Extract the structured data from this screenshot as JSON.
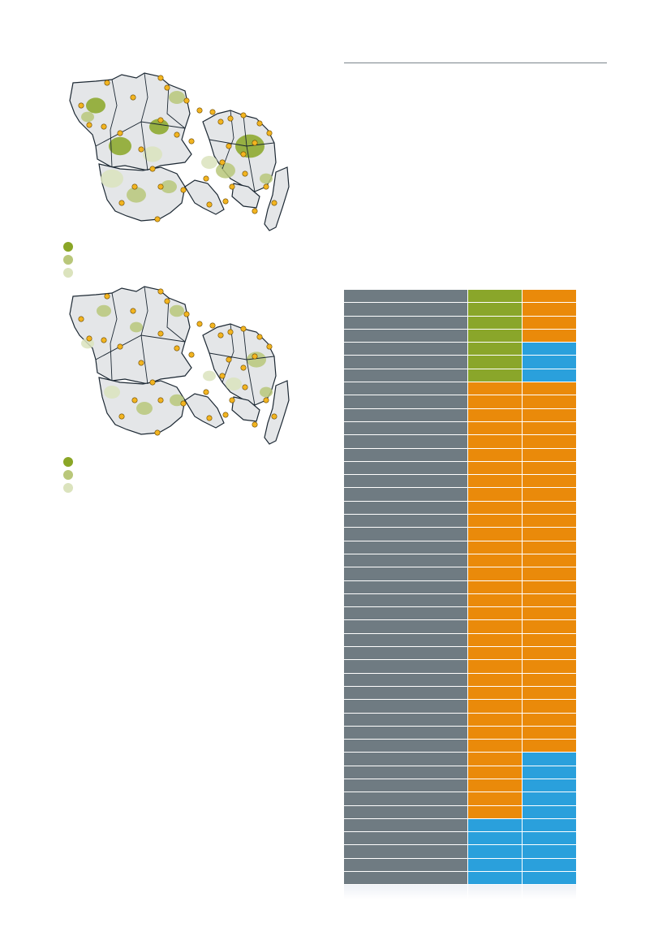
{
  "colors": {
    "land": "#e4e6e8",
    "border": "#1c2833",
    "green_dark": "#8aa626",
    "green_mid": "#b9c77a",
    "green_light": "#dbe3bd",
    "marker": "#f2b420",
    "row_label": "#6f7b82",
    "green": "#8aa62a",
    "orange": "#ea8a0a",
    "blue": "#2aa0dc"
  },
  "maps": [
    {
      "id": "map1",
      "legend": [
        {
          "label": "",
          "color": "#8aa626"
        },
        {
          "label": "",
          "color": "#b9c77a"
        },
        {
          "label": "",
          "color": "#dbe3bd"
        }
      ]
    },
    {
      "id": "map2",
      "legend": [
        {
          "label": "",
          "color": "#8aa626"
        },
        {
          "label": "",
          "color": "#b9c77a"
        },
        {
          "label": "",
          "color": "#dbe3bd"
        }
      ]
    }
  ],
  "matrix": {
    "rows": [
      {
        "label": "",
        "a": "green",
        "b": "orange"
      },
      {
        "label": "",
        "a": "green",
        "b": "orange"
      },
      {
        "label": "",
        "a": "green",
        "b": "orange"
      },
      {
        "label": "",
        "a": "green",
        "b": "orange"
      },
      {
        "label": "",
        "a": "green",
        "b": "blue"
      },
      {
        "label": "",
        "a": "green",
        "b": "blue"
      },
      {
        "label": "",
        "a": "green",
        "b": "blue"
      },
      {
        "label": "",
        "a": "orange",
        "b": "orange"
      },
      {
        "label": "",
        "a": "orange",
        "b": "orange"
      },
      {
        "label": "",
        "a": "orange",
        "b": "orange"
      },
      {
        "label": "",
        "a": "orange",
        "b": "orange"
      },
      {
        "label": "",
        "a": "orange",
        "b": "orange"
      },
      {
        "label": "",
        "a": "orange",
        "b": "orange"
      },
      {
        "label": "",
        "a": "orange",
        "b": "orange"
      },
      {
        "label": "",
        "a": "orange",
        "b": "orange"
      },
      {
        "label": "",
        "a": "orange",
        "b": "orange"
      },
      {
        "label": "",
        "a": "orange",
        "b": "orange"
      },
      {
        "label": "",
        "a": "orange",
        "b": "orange"
      },
      {
        "label": "",
        "a": "orange",
        "b": "orange"
      },
      {
        "label": "",
        "a": "orange",
        "b": "orange"
      },
      {
        "label": "",
        "a": "orange",
        "b": "orange"
      },
      {
        "label": "",
        "a": "orange",
        "b": "orange"
      },
      {
        "label": "",
        "a": "orange",
        "b": "orange"
      },
      {
        "label": "",
        "a": "orange",
        "b": "orange"
      },
      {
        "label": "",
        "a": "orange",
        "b": "orange"
      },
      {
        "label": "",
        "a": "orange",
        "b": "orange"
      },
      {
        "label": "",
        "a": "orange",
        "b": "orange"
      },
      {
        "label": "",
        "a": "orange",
        "b": "orange"
      },
      {
        "label": "",
        "a": "orange",
        "b": "orange"
      },
      {
        "label": "",
        "a": "orange",
        "b": "orange"
      },
      {
        "label": "",
        "a": "orange",
        "b": "orange"
      },
      {
        "label": "",
        "a": "orange",
        "b": "orange"
      },
      {
        "label": "",
        "a": "orange",
        "b": "orange"
      },
      {
        "label": "",
        "a": "orange",
        "b": "orange"
      },
      {
        "label": "",
        "a": "orange",
        "b": "orange"
      },
      {
        "label": "",
        "a": "orange",
        "b": "blue"
      },
      {
        "label": "",
        "a": "orange",
        "b": "blue"
      },
      {
        "label": "",
        "a": "orange",
        "b": "blue"
      },
      {
        "label": "",
        "a": "orange",
        "b": "blue"
      },
      {
        "label": "",
        "a": "orange",
        "b": "blue"
      },
      {
        "label": "",
        "a": "blue",
        "b": "blue"
      },
      {
        "label": "",
        "a": "blue",
        "b": "blue"
      },
      {
        "label": "",
        "a": "blue",
        "b": "blue"
      },
      {
        "label": "",
        "a": "blue",
        "b": "blue"
      },
      {
        "label": "",
        "a": "blue",
        "b": "blue"
      }
    ]
  }
}
